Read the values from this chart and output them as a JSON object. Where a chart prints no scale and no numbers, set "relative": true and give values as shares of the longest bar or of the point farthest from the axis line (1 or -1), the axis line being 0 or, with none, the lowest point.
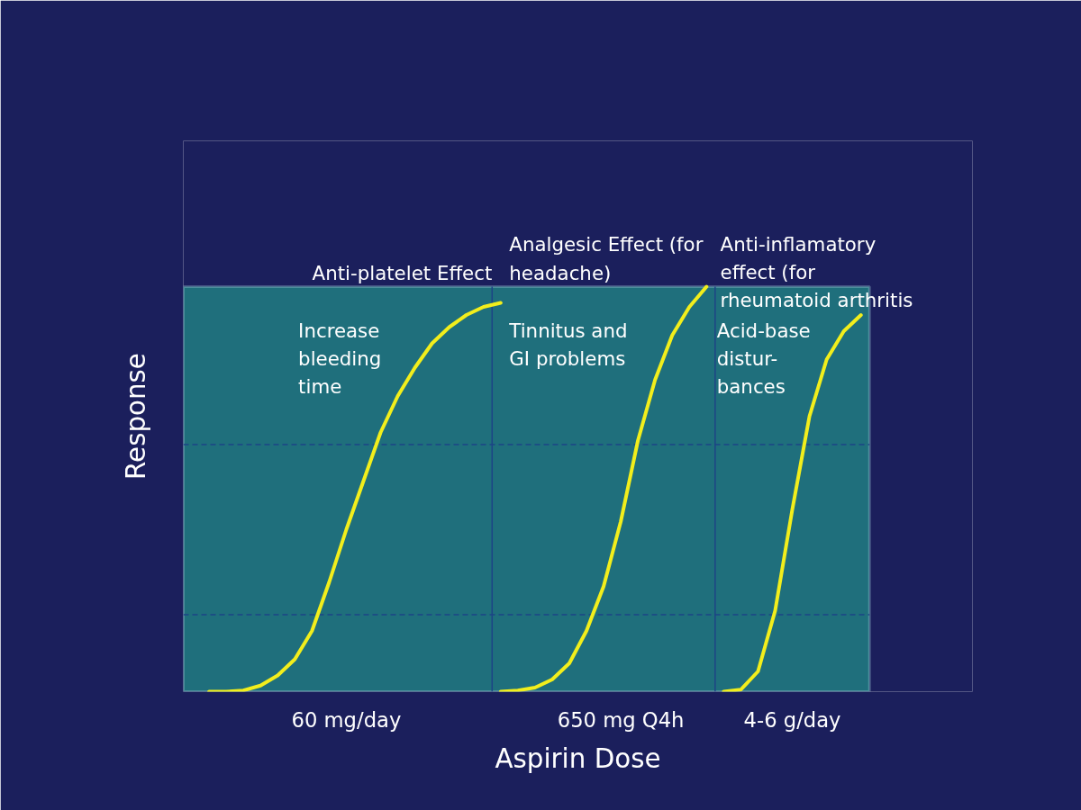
{
  "chart_data": {
    "type": "line",
    "relative": true,
    "xlabel": "Aspirin Dose",
    "ylabel": "Response",
    "categories": [
      null,
      null,
      null,
      null,
      null,
      null,
      null,
      null,
      null,
      "60 mg/day",
      null,
      null,
      null,
      null,
      null,
      null,
      null,
      null,
      null,
      null,
      null,
      null,
      null,
      null,
      null,
      "650 mg Q4h",
      null,
      null,
      null,
      null,
      null,
      null,
      null,
      null,
      null,
      "4-6 g/day",
      null,
      null,
      null,
      null
    ],
    "series": [
      {
        "name": "Anti-platelet Effect",
        "color": "#f2ee1c",
        "values": [
          null,
          0,
          0,
          0.003,
          0.015,
          0.04,
          0.08,
          0.15,
          0.27,
          0.4,
          0.52,
          0.64,
          0.73,
          0.8,
          0.86,
          0.9,
          0.93,
          0.95,
          0.96,
          null,
          null,
          null,
          null,
          null,
          null,
          null,
          null,
          null,
          null,
          null,
          null,
          null,
          null,
          null,
          null,
          null,
          null,
          null,
          null,
          null
        ]
      },
      {
        "name": "Analgesic Effect (for headache)",
        "color": "#f2ee1c",
        "values": [
          null,
          null,
          null,
          null,
          null,
          null,
          null,
          null,
          null,
          null,
          null,
          null,
          null,
          null,
          null,
          null,
          null,
          null,
          0,
          0.003,
          0.01,
          0.03,
          0.07,
          0.15,
          0.26,
          0.42,
          0.62,
          0.77,
          0.88,
          0.95,
          1.0,
          null,
          null,
          null,
          null,
          null,
          null,
          null,
          null,
          null
        ]
      },
      {
        "name": "Anti-inflamatory effect (for rheumatoid arthritis",
        "color": "#f2ee1c",
        "values": [
          null,
          null,
          null,
          null,
          null,
          null,
          null,
          null,
          null,
          null,
          null,
          null,
          null,
          null,
          null,
          null,
          null,
          null,
          null,
          null,
          null,
          null,
          null,
          null,
          null,
          null,
          null,
          null,
          null,
          null,
          null,
          0,
          0.005,
          0.05,
          0.2,
          0.45,
          0.68,
          0.82,
          0.89,
          0.93
        ]
      }
    ],
    "annotations": [
      "Increase bleeding time",
      "Tinnitus and GI problems",
      "Acid-base distur-bances"
    ],
    "ref_lines": [
      {
        "axis": "y",
        "value": 0.61,
        "color": "#1d4486",
        "line_style": "dashed"
      },
      {
        "axis": "y",
        "value": 0.19,
        "color": "#1d4486",
        "line_style": "dashed"
      }
    ],
    "legend": false,
    "grid": false,
    "marker": "none",
    "line_style": "solid"
  }
}
